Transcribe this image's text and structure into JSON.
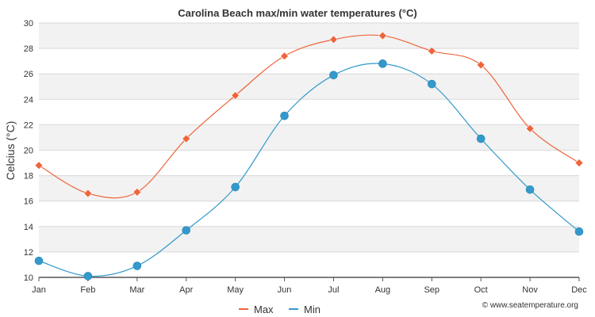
{
  "chart_data": {
    "type": "line",
    "title": "Carolina Beach max/min water temperatures (°C)",
    "xlabel": "",
    "ylabel": "Celcius (°C)",
    "categories": [
      "Jan",
      "Feb",
      "Mar",
      "Apr",
      "May",
      "Jun",
      "Jul",
      "Aug",
      "Sep",
      "Oct",
      "Nov",
      "Dec"
    ],
    "ylim": [
      10,
      30
    ],
    "yticks": [
      10,
      12,
      14,
      16,
      18,
      20,
      22,
      24,
      26,
      28,
      30
    ],
    "series": [
      {
        "name": "Max",
        "color": "#f0643a",
        "marker": "diamond",
        "values": [
          18.8,
          16.6,
          16.7,
          20.9,
          24.3,
          27.4,
          28.7,
          29.0,
          27.8,
          26.7,
          21.7,
          19.0
        ]
      },
      {
        "name": "Min",
        "color": "#3399cc",
        "marker": "circle",
        "values": [
          11.3,
          10.1,
          10.9,
          13.7,
          17.1,
          22.7,
          25.9,
          26.8,
          25.2,
          20.9,
          16.9,
          13.6
        ]
      }
    ],
    "legend": "bottom-center",
    "grid": true,
    "credit": "© www.seatemperature.org"
  }
}
